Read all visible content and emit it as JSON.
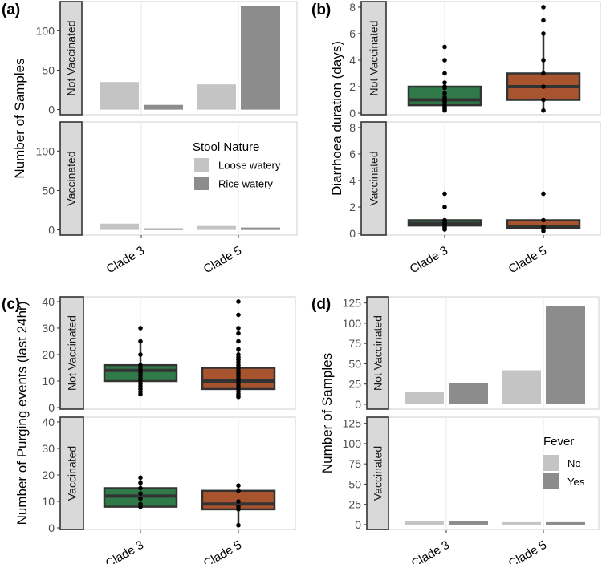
{
  "colors": {
    "clade3": "#2f7a48",
    "clade5": "#a8552f",
    "light_bar": "#c4c4c4",
    "dark_bar": "#8c8c8c",
    "strip": "#d9d9d9"
  },
  "chart_data": [
    {
      "panel": "(a)",
      "type": "bar",
      "ylabel": "Number of Samples",
      "categories": [
        "Clade 3",
        "Clade 5"
      ],
      "facets": [
        "Not Vaccinated",
        "Vaccinated"
      ],
      "yticks": [
        0,
        50,
        100
      ],
      "ylim": [
        -6.5,
        137
      ],
      "legend": {
        "title": "Stool Nature",
        "entries": [
          "Loose watery",
          "Rice watery"
        ],
        "placement": "bottom facet right"
      },
      "series": [
        {
          "name": "Loose watery",
          "values": [
            [
              35,
              32
            ],
            [
              8,
              5
            ]
          ]
        },
        {
          "name": "Rice watery",
          "values": [
            [
              6,
              131
            ],
            [
              2,
              3
            ]
          ]
        }
      ]
    },
    {
      "panel": "(b)",
      "type": "box",
      "ylabel": "Diarrhoea duration (days)",
      "categories": [
        "Clade 3",
        "Clade 5"
      ],
      "facets": [
        "Not Vaccinated",
        "Vaccinated"
      ],
      "yticks": [
        0,
        2,
        4,
        6,
        8
      ],
      "ylim": [
        -0.12,
        8.42
      ],
      "boxes": [
        [
          {
            "q1": 0.6,
            "median": 1,
            "q3": 2,
            "lo": 0.2,
            "hi": 2.3,
            "points": [
              0.2,
              0.3,
              0.4,
              0.5,
              0.6,
              0.8,
              0.9,
              1,
              1.1,
              1.2,
              1.5,
              1.9,
              2,
              2.3,
              3,
              4,
              5
            ]
          },
          {
            "q1": 1,
            "median": 2,
            "q3": 3,
            "lo": 0.2,
            "hi": 6,
            "points": [
              0.2,
              1,
              2,
              3,
              4,
              6,
              7,
              8
            ]
          }
        ],
        [
          {
            "q1": 0.6,
            "median": 0.75,
            "q3": 1,
            "lo": 0.3,
            "hi": 1,
            "points": [
              0.3,
              0.4,
              0.5,
              0.6,
              0.7,
              0.8,
              0.9,
              1,
              2,
              3
            ]
          },
          {
            "q1": 0.4,
            "median": 0.5,
            "q3": 1,
            "lo": 0.2,
            "hi": 1,
            "points": [
              0.2,
              0.4,
              0.5,
              1,
              3
            ]
          }
        ]
      ]
    },
    {
      "panel": "(c)",
      "type": "box",
      "ylabel": "Number of Purging events (last 24hr)",
      "categories": [
        "Clade 3",
        "Clade 5"
      ],
      "facets": [
        "Not Vaccinated",
        "Vaccinated"
      ],
      "yticks": [
        0,
        10,
        20,
        30,
        40
      ],
      "ylim": [
        -0.6,
        41.8
      ],
      "boxes": [
        [
          {
            "q1": 10,
            "median": 14,
            "q3": 16,
            "lo": 5,
            "hi": 25,
            "points": [
              5,
              6,
              7,
              8,
              9,
              10,
              11,
              12,
              13,
              14,
              15,
              16,
              20,
              25,
              30
            ]
          },
          {
            "q1": 7,
            "median": 10,
            "q3": 15,
            "lo": 4,
            "hi": 22,
            "points": [
              4,
              5,
              6,
              7,
              8,
              9,
              10,
              11,
              12,
              13,
              14,
              15,
              16,
              17,
              18,
              19,
              20,
              22,
              25,
              28,
              30,
              35,
              40
            ]
          }
        ],
        [
          {
            "q1": 8,
            "median": 12,
            "q3": 15,
            "lo": 8,
            "hi": 19,
            "points": [
              8,
              9,
              11,
              13,
              15,
              17,
              19
            ]
          },
          {
            "q1": 7,
            "median": 9,
            "q3": 14,
            "lo": 1,
            "hi": 16,
            "points": [
              1,
              7,
              8,
              10,
              14,
              16
            ]
          }
        ]
      ]
    },
    {
      "panel": "(d)",
      "type": "bar",
      "ylabel": "Number of Samples",
      "categories": [
        "Clade 3",
        "Clade 5"
      ],
      "facets": [
        "Not Vaccinated",
        "Vaccinated"
      ],
      "yticks": [
        0,
        25,
        50,
        75,
        100,
        125
      ],
      "ylim": [
        -6,
        132.6
      ],
      "legend": {
        "title": "Fever",
        "entries": [
          "No",
          "Yes"
        ],
        "placement": "bottom facet right"
      },
      "series": [
        {
          "name": "No",
          "values": [
            [
              15,
              42
            ],
            [
              4,
              3
            ]
          ]
        },
        {
          "name": "Yes",
          "values": [
            [
              26,
              121
            ],
            [
              4,
              3
            ]
          ]
        }
      ]
    }
  ]
}
